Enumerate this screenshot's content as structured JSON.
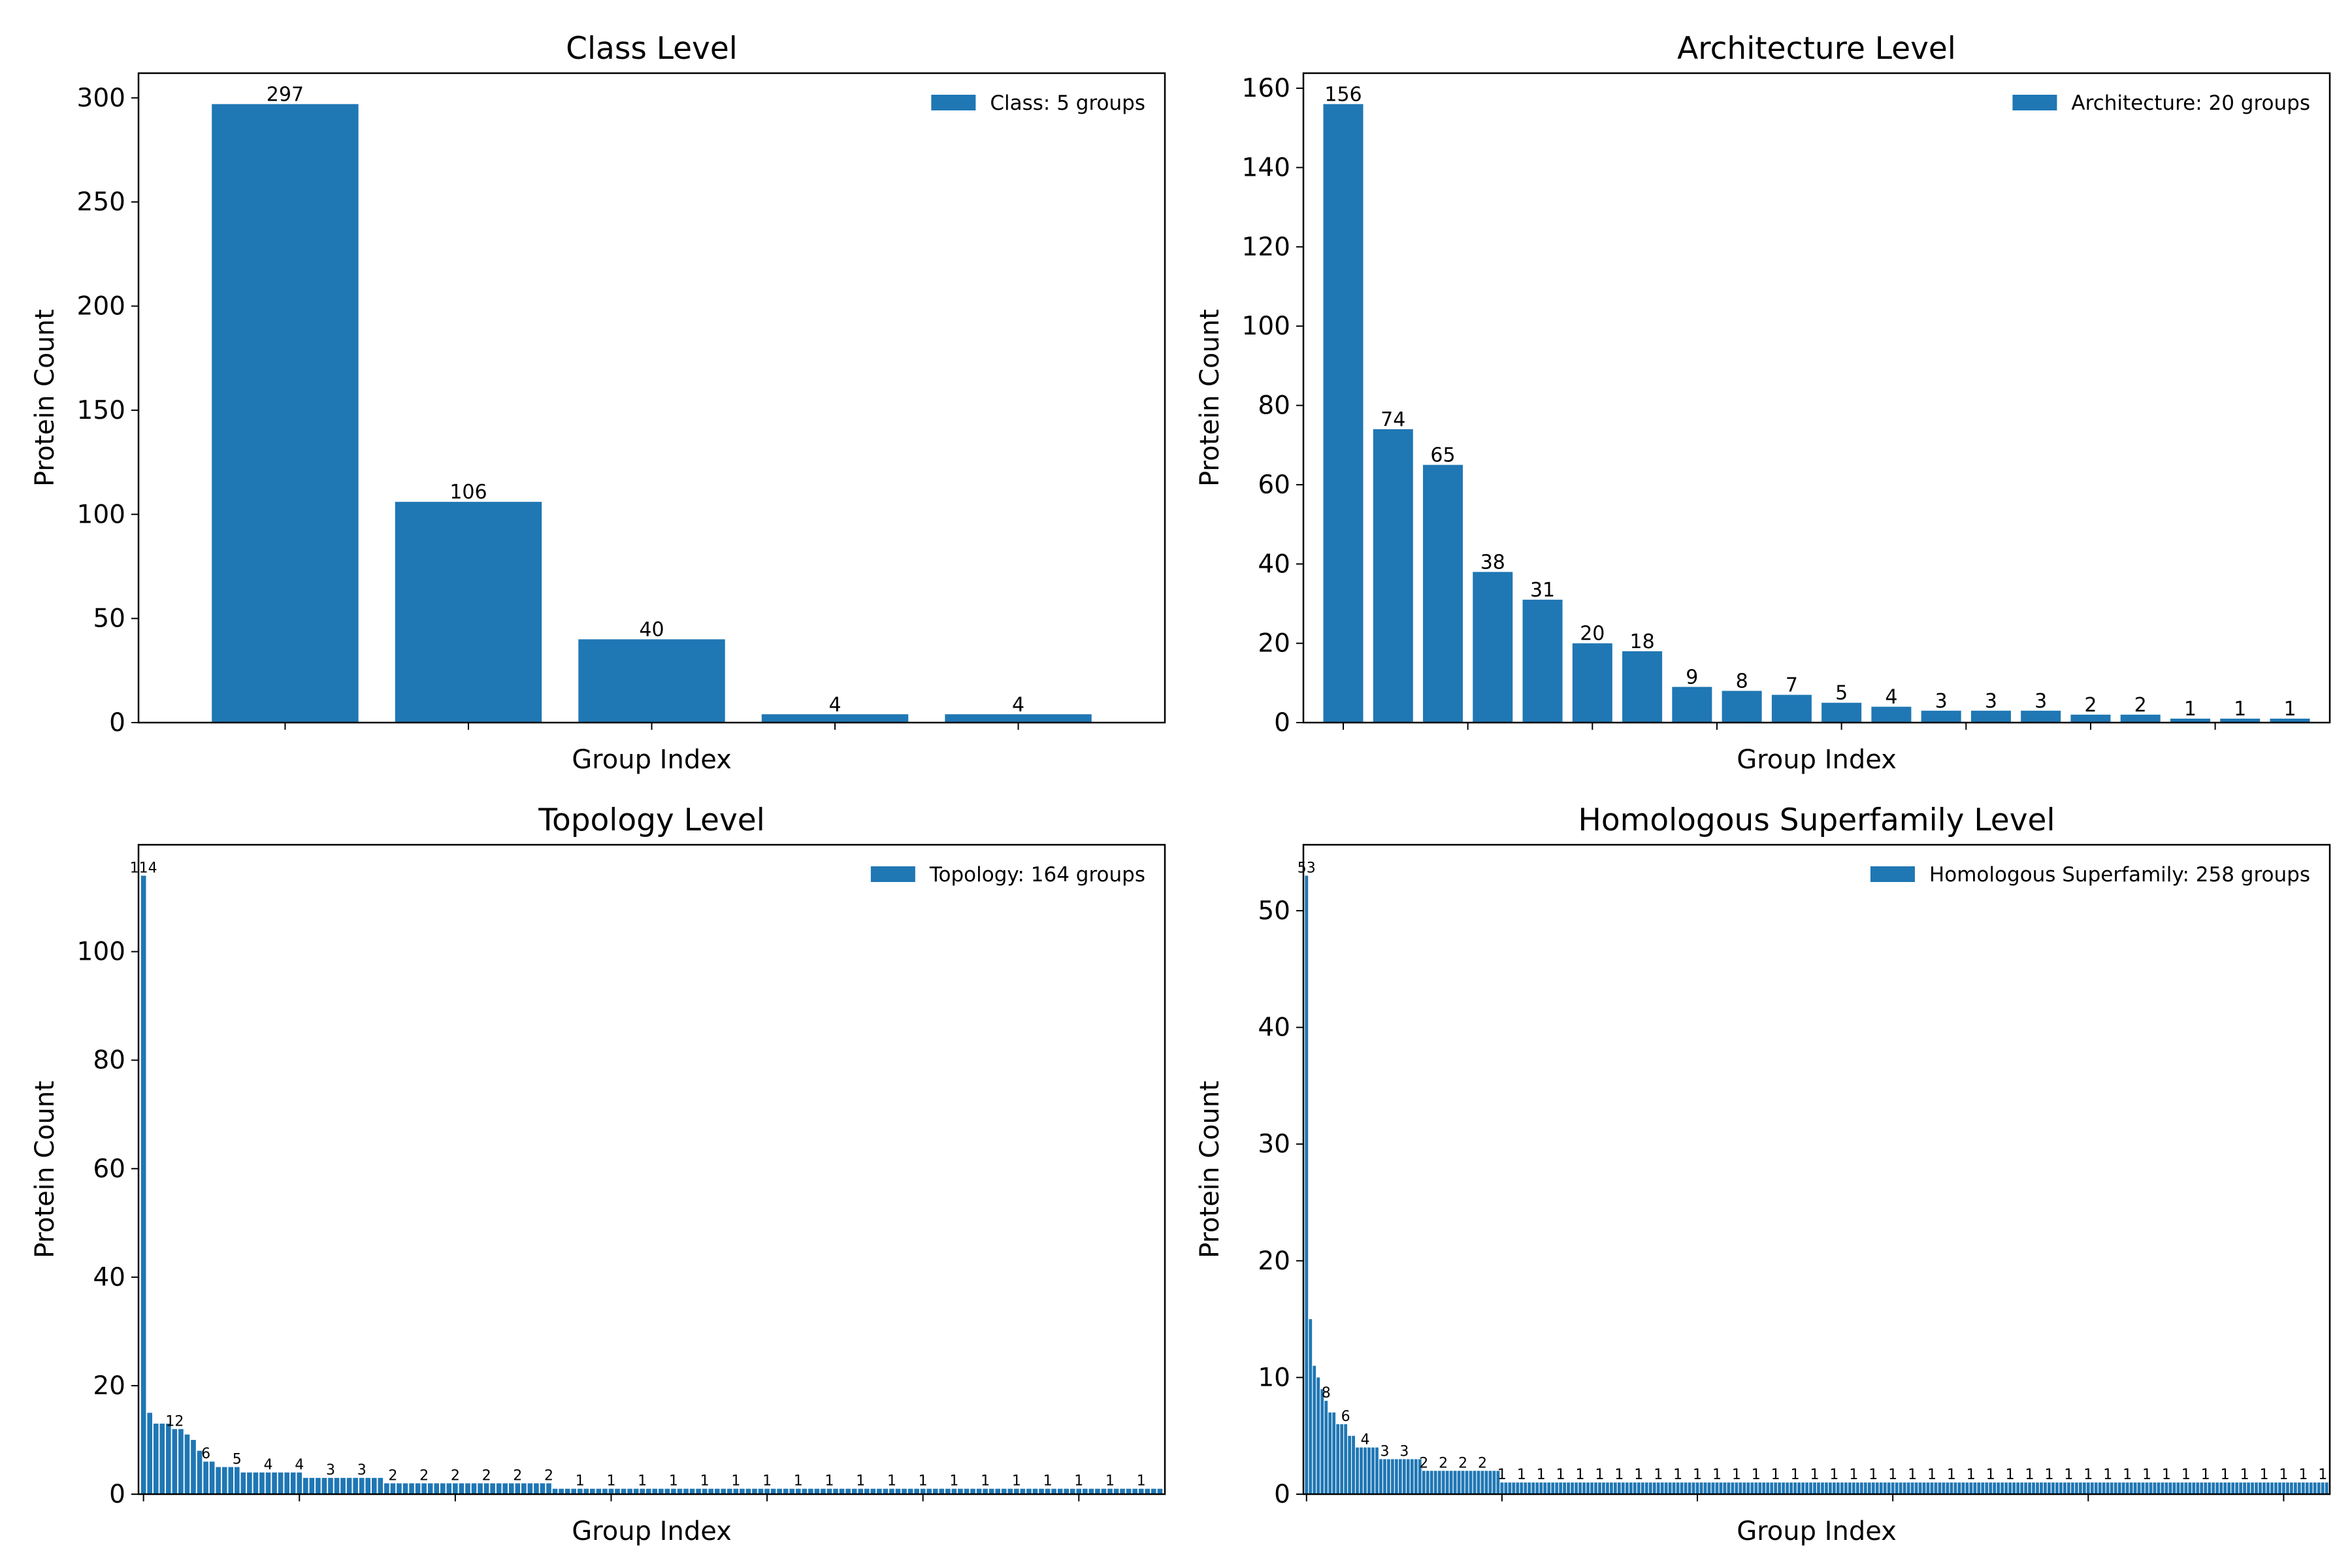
{
  "colors": {
    "bar": "#1f77b4",
    "axis": "#000000",
    "background": "#ffffff"
  },
  "chart_data": [
    {
      "type": "bar",
      "title": "Class Level",
      "xlabel": "Group Index",
      "ylabel": "Protein Count",
      "legend": {
        "label": "Class: 5 groups",
        "position": "top-right"
      },
      "grid": false,
      "ylim": [
        0,
        311.85
      ],
      "yticks": [
        0,
        50,
        100,
        150,
        200,
        250,
        300
      ],
      "x_tick_every": 1,
      "label_every": 1,
      "label_font": "normal",
      "values": [
        297,
        106,
        40,
        4,
        4
      ]
    },
    {
      "type": "bar",
      "title": "Architecture Level",
      "xlabel": "Group Index",
      "ylabel": "Protein Count",
      "legend": {
        "label": "Architecture: 20 groups",
        "position": "top-right"
      },
      "grid": false,
      "ylim": [
        0,
        163.8
      ],
      "yticks": [
        0,
        20,
        40,
        60,
        80,
        100,
        120,
        140,
        160
      ],
      "x_tick_every": 2.5,
      "label_every": 1,
      "label_font": "normal",
      "values": [
        156,
        74,
        65,
        38,
        31,
        20,
        18,
        9,
        8,
        7,
        5,
        4,
        3,
        3,
        3,
        2,
        2,
        1,
        1,
        1
      ]
    },
    {
      "type": "bar",
      "title": "Topology Level",
      "xlabel": "Group Index",
      "ylabel": "Protein Count",
      "legend": {
        "label": "Topology: 164 groups",
        "position": "top-right"
      },
      "grid": false,
      "ylim": [
        0,
        119.7
      ],
      "yticks": [
        0,
        20,
        40,
        60,
        80,
        100
      ],
      "x_tick_every": 25,
      "label_every": 5,
      "label_font": "small",
      "values": [
        114,
        15,
        13,
        13,
        13,
        12,
        12,
        11,
        10,
        8,
        6,
        6,
        5,
        5,
        5,
        5,
        4,
        4,
        4,
        4,
        4,
        4,
        4,
        4,
        4,
        4,
        3,
        3,
        3,
        3,
        3,
        3,
        3,
        3,
        3,
        3,
        3,
        3,
        3,
        2,
        2,
        2,
        2,
        2,
        2,
        2,
        2,
        2,
        2,
        2,
        2,
        2,
        2,
        2,
        2,
        2,
        2,
        2,
        2,
        2,
        2,
        2,
        2,
        2,
        2,
        2,
        1,
        1,
        1,
        1,
        1,
        1,
        1,
        1,
        1,
        1,
        1,
        1,
        1,
        1,
        1,
        1,
        1,
        1,
        1,
        1,
        1,
        1,
        1,
        1,
        1,
        1,
        1,
        1,
        1,
        1,
        1,
        1,
        1,
        1,
        1,
        1,
        1,
        1,
        1,
        1,
        1,
        1,
        1,
        1,
        1,
        1,
        1,
        1,
        1,
        1,
        1,
        1,
        1,
        1,
        1,
        1,
        1,
        1,
        1,
        1,
        1,
        1,
        1,
        1,
        1,
        1,
        1,
        1,
        1,
        1,
        1,
        1,
        1,
        1,
        1,
        1,
        1,
        1,
        1,
        1,
        1,
        1,
        1,
        1,
        1,
        1,
        1,
        1,
        1,
        1,
        1,
        1,
        1,
        1,
        1,
        1,
        1,
        1
      ]
    },
    {
      "type": "bar",
      "title": "Homologous Superfamily Level",
      "xlabel": "Group Index",
      "ylabel": "Protein Count",
      "legend": {
        "label": "Homologous Superfamily: 258 groups",
        "position": "top-right"
      },
      "grid": false,
      "ylim": [
        0,
        55.65
      ],
      "yticks": [
        0,
        10,
        20,
        30,
        40,
        50
      ],
      "x_tick_every": 50,
      "label_every": 5,
      "label_font": "small",
      "values": [
        53,
        15,
        11,
        10,
        9,
        8,
        7,
        7,
        6,
        6,
        6,
        5,
        5,
        4,
        4,
        4,
        4,
        4,
        4,
        3,
        3,
        3,
        3,
        3,
        3,
        3,
        3,
        3,
        3,
        3,
        2,
        2,
        2,
        2,
        2,
        2,
        2,
        2,
        2,
        2,
        2,
        2,
        2,
        2,
        2,
        2,
        2,
        2,
        2,
        2,
        1,
        1,
        1,
        1,
        1,
        1,
        1,
        1,
        1,
        1,
        1,
        1,
        1,
        1,
        1,
        1,
        1,
        1,
        1,
        1,
        1,
        1,
        1,
        1,
        1,
        1,
        1,
        1,
        1,
        1,
        1,
        1,
        1,
        1,
        1,
        1,
        1,
        1,
        1,
        1,
        1,
        1,
        1,
        1,
        1,
        1,
        1,
        1,
        1,
        1,
        1,
        1,
        1,
        1,
        1,
        1,
        1,
        1,
        1,
        1,
        1,
        1,
        1,
        1,
        1,
        1,
        1,
        1,
        1,
        1,
        1,
        1,
        1,
        1,
        1,
        1,
        1,
        1,
        1,
        1,
        1,
        1,
        1,
        1,
        1,
        1,
        1,
        1,
        1,
        1,
        1,
        1,
        1,
        1,
        1,
        1,
        1,
        1,
        1,
        1,
        1,
        1,
        1,
        1,
        1,
        1,
        1,
        1,
        1,
        1,
        1,
        1,
        1,
        1,
        1,
        1,
        1,
        1,
        1,
        1,
        1,
        1,
        1,
        1,
        1,
        1,
        1,
        1,
        1,
        1,
        1,
        1,
        1,
        1,
        1,
        1,
        1,
        1,
        1,
        1,
        1,
        1,
        1,
        1,
        1,
        1,
        1,
        1,
        1,
        1,
        1,
        1,
        1,
        1,
        1,
        1,
        1,
        1,
        1,
        1,
        1,
        1,
        1,
        1,
        1,
        1,
        1,
        1,
        1,
        1,
        1,
        1,
        1,
        1,
        1,
        1,
        1,
        1,
        1,
        1,
        1,
        1,
        1,
        1,
        1,
        1,
        1,
        1,
        1,
        1,
        1,
        1,
        1,
        1,
        1,
        1,
        1,
        1,
        1,
        1,
        1,
        1,
        1,
        1,
        1,
        1,
        1,
        1,
        1,
        1,
        1,
        1
      ]
    }
  ]
}
